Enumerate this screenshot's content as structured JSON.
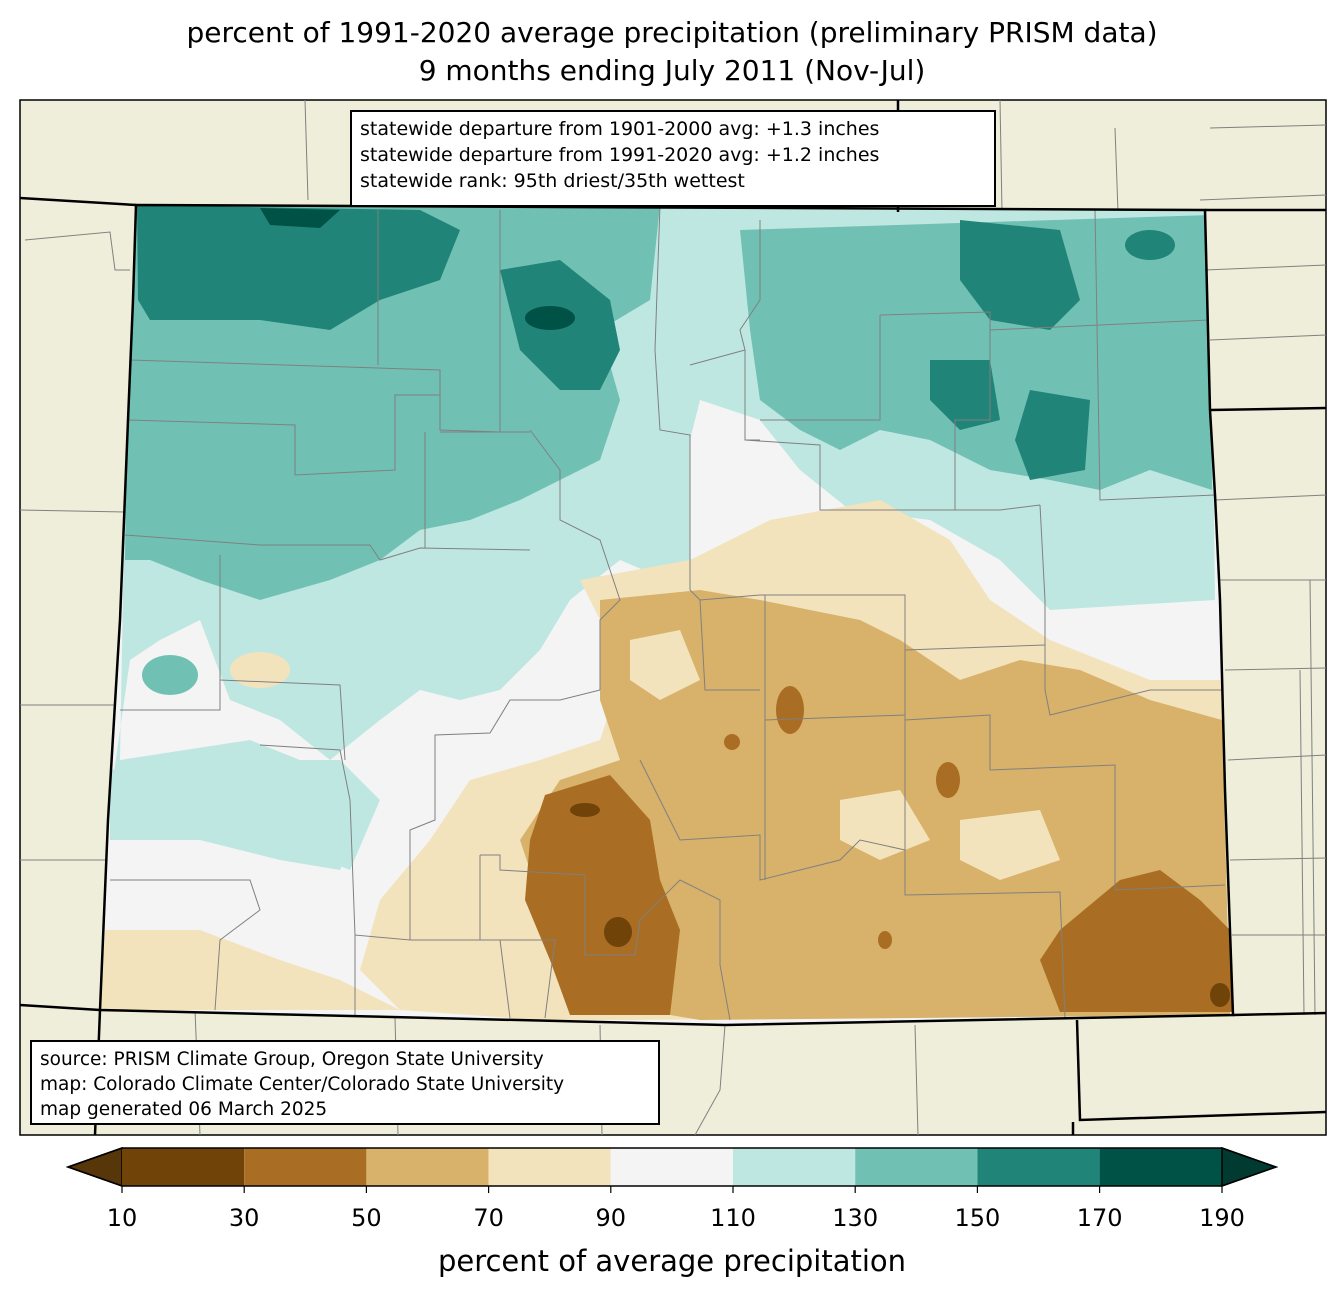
{
  "title": {
    "line1": "percent of 1991-2020 average precipitation (preliminary PRISM data)",
    "line2": "9 months ending July 2011 (Nov-Jul)"
  },
  "stats": {
    "line1": "statewide departure from 1901-2000 avg: +1.3 inches",
    "line2": "statewide departure from 1991-2020 avg: +1.2 inches",
    "line3": "statewide rank: 95th driest/35th wettest"
  },
  "source": {
    "line1": "source: PRISM Climate Group, Oregon State University",
    "line2": "map: Colorado Climate Center/Colorado State University",
    "line3": "map generated 06 March 2025"
  },
  "colorbar": {
    "label": "percent of average precipitation",
    "ticks": [
      "10",
      "30",
      "50",
      "70",
      "90",
      "110",
      "130",
      "150",
      "170",
      "190"
    ],
    "bins": [
      {
        "range": "10-30",
        "color": "#704308"
      },
      {
        "range": "30-50",
        "color": "#a96e23"
      },
      {
        "range": "50-70",
        "color": "#d8b26a"
      },
      {
        "range": "70-90",
        "color": "#f3e3bd"
      },
      {
        "range": "90-110",
        "color": "#f4f4f4"
      },
      {
        "range": "110-130",
        "color": "#bfe7e1"
      },
      {
        "range": "130-150",
        "color": "#70c1b4"
      },
      {
        "range": "150-170",
        "color": "#218478"
      },
      {
        "range": "170-190",
        "color": "#005146"
      }
    ],
    "under_color": "#573609",
    "over_color": "#003a30"
  },
  "colors": {
    "land_outside": "#efeeda",
    "county_lines": "#808080",
    "state_lines": "#000000"
  }
}
